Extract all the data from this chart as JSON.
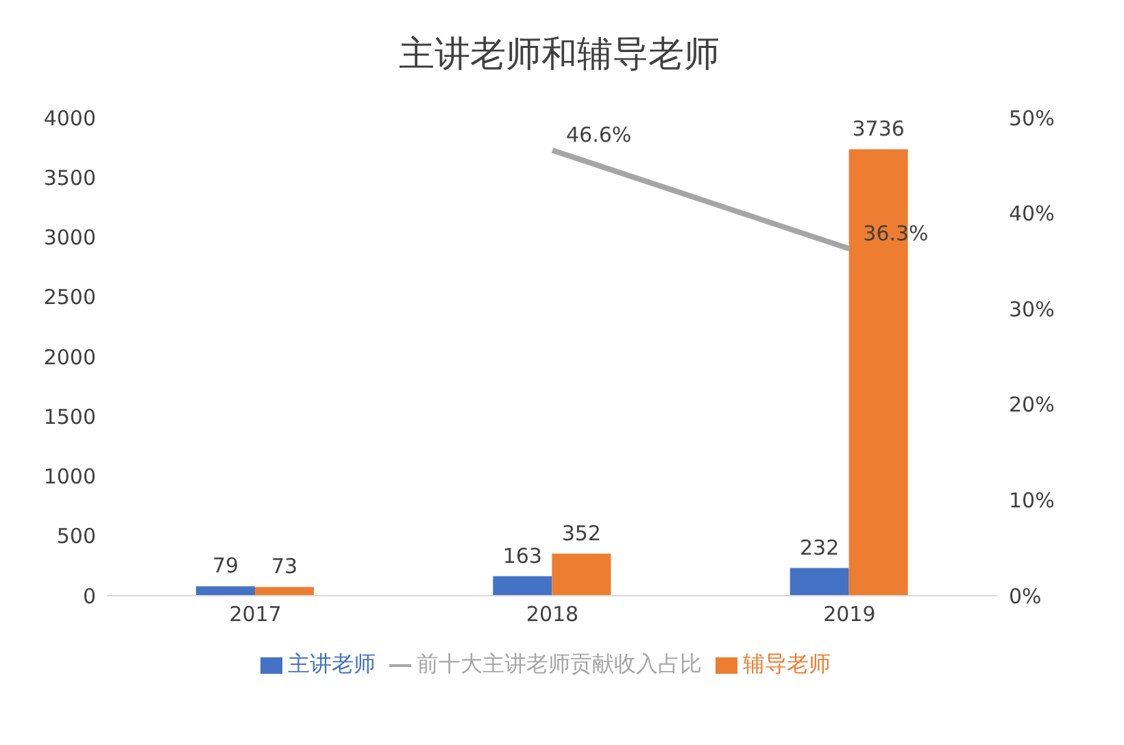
{
  "chart_data": {
    "type": "bar",
    "title": "主讲老师和辅导老师",
    "categories": [
      "2017",
      "2018",
      "2019"
    ],
    "series": [
      {
        "name": "主讲老师",
        "color": "#4472c4",
        "values": [
          79,
          163,
          232
        ]
      },
      {
        "name": "辅导老师",
        "color": "#ed7d31",
        "values": [
          73,
          352,
          3736
        ]
      },
      {
        "name": "前十大主讲老师贡献收入占比",
        "type": "line",
        "axis": "y2",
        "color": "#a5a5a5",
        "values": [
          null,
          46.6,
          36.3
        ],
        "value_labels": [
          null,
          "46.6%",
          "36.3%"
        ]
      }
    ],
    "ylim": [
      0,
      4000
    ],
    "yticks": [
      0,
      500,
      1000,
      1500,
      2000,
      2500,
      3000,
      3500,
      4000
    ],
    "y2lim": [
      0,
      50
    ],
    "y2ticks": [
      {
        "value": 0,
        "label": "0%"
      },
      {
        "value": 10,
        "label": "10%"
      },
      {
        "value": 20,
        "label": "20%"
      },
      {
        "value": 30,
        "label": "30%"
      },
      {
        "value": 40,
        "label": "40%"
      },
      {
        "value": 50,
        "label": "50%"
      }
    ],
    "data_labels": true,
    "grid": false,
    "legend": "bottom",
    "marker": "none",
    "line_style": "solid"
  }
}
